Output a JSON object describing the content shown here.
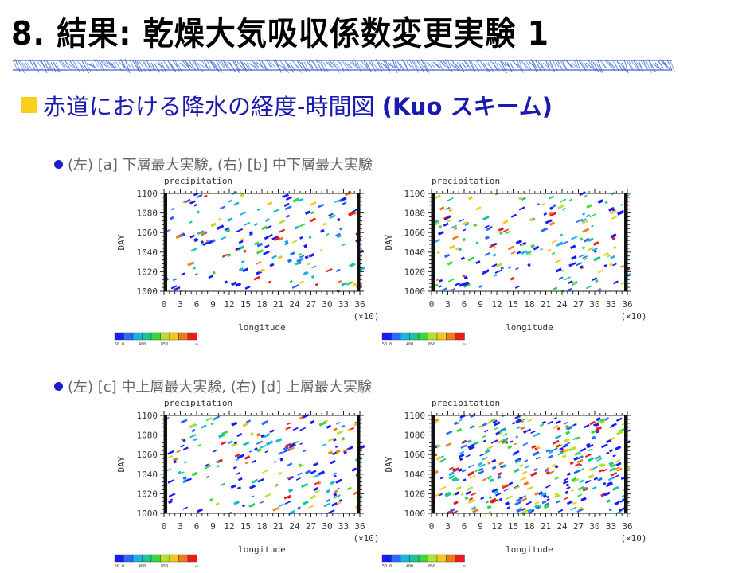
{
  "slide": {
    "title": "8. 結果: 乾燥大気吸収係数変更実験 1",
    "subtitle": "赤道における降水の経度-時間図",
    "subtitle_suffix": "(Kuo スキーム)",
    "rows": [
      {
        "label": "(左) [a] 下層最大実験, (右) [b] 中下層最大実験"
      },
      {
        "label": "(左) [c] 中上層最大実験, (右) [d] 上層最大実験"
      }
    ],
    "colors": {
      "title": "#000000",
      "subtitle": "#1a1ab0",
      "bullet_square": "#f7d11b",
      "bullet_dot": "#1d1dd0",
      "row_label": "#666666"
    }
  },
  "plots": [
    {
      "id": "a",
      "title": "precipitation",
      "xlabel": "longitude",
      "ylabel": "DAY",
      "x_multiplier": "(×10)"
    },
    {
      "id": "b",
      "title": "precipitation",
      "xlabel": "longitude",
      "ylabel": "DAY",
      "x_multiplier": "(×10)"
    },
    {
      "id": "c",
      "title": "precipitation",
      "xlabel": "longitude",
      "ylabel": "DAY",
      "x_multiplier": "(×10)"
    },
    {
      "id": "d",
      "title": "precipitation",
      "xlabel": "longitude",
      "ylabel": "DAY",
      "x_multiplier": "(×10)"
    }
  ],
  "axes": {
    "x_ticks": [
      "0",
      "3",
      "6",
      "9",
      "12",
      "15",
      "18",
      "21",
      "24",
      "27",
      "30",
      "33",
      "36"
    ],
    "y_ticks": [
      "1000",
      "1020",
      "1040",
      "1060",
      "1080",
      "1100"
    ],
    "x_range": [
      0,
      36
    ],
    "y_range": [
      1000,
      1100
    ]
  },
  "colorbar": {
    "labels": [
      "50.0",
      "400.",
      "850.",
      "∞"
    ],
    "colors": [
      "#1a1aff",
      "#2a6bff",
      "#19b4e6",
      "#17c896",
      "#38d838",
      "#b6e02e",
      "#f5c518",
      "#f07a17",
      "#ee1b1b"
    ]
  },
  "chart_data": [
    {
      "type": "heatmap",
      "title": "precipitation",
      "xlabel": "longitude",
      "ylabel": "DAY",
      "x_range": [
        0,
        36
      ],
      "x_multiplier": "(×10)",
      "y_range": [
        1000,
        1100
      ],
      "pattern": "diagonal-streaks",
      "density": 0.5
    },
    {
      "type": "heatmap",
      "title": "precipitation",
      "xlabel": "longitude",
      "ylabel": "DAY",
      "x_range": [
        0,
        36
      ],
      "x_multiplier": "(×10)",
      "y_range": [
        1000,
        1100
      ],
      "pattern": "diagonal-streaks",
      "density": 0.55
    },
    {
      "type": "heatmap",
      "title": "precipitation",
      "xlabel": "longitude",
      "ylabel": "DAY",
      "x_range": [
        0,
        36
      ],
      "x_multiplier": "(×10)",
      "y_range": [
        1000,
        1100
      ],
      "pattern": "scattered",
      "density": 0.55
    },
    {
      "type": "heatmap",
      "title": "precipitation",
      "xlabel": "longitude",
      "ylabel": "DAY",
      "x_range": [
        0,
        36
      ],
      "x_multiplier": "(×10)",
      "y_range": [
        1000,
        1100
      ],
      "pattern": "dense",
      "density": 1.0
    }
  ]
}
